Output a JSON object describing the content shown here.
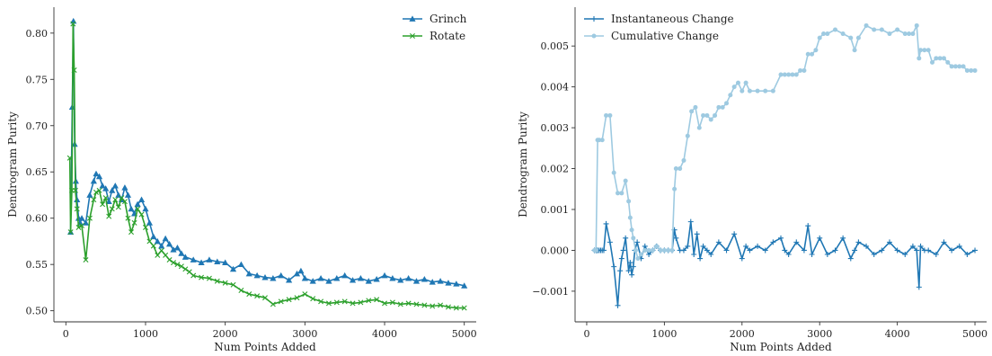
{
  "chart_data": [
    {
      "type": "line",
      "xlabel": "Num Points Added",
      "ylabel": "Dendrogram Purity",
      "xlim": [
        -150,
        5150
      ],
      "ylim": [
        0.488,
        0.828
      ],
      "xticks": [
        0,
        1000,
        2000,
        3000,
        4000,
        5000
      ],
      "xtick_labels": [
        "0",
        "1000",
        "2000",
        "3000",
        "4000",
        "5000"
      ],
      "yticks": [
        0.5,
        0.55,
        0.6,
        0.65,
        0.7,
        0.75,
        0.8
      ],
      "ytick_labels": [
        "0.50",
        "0.55",
        "0.60",
        "0.65",
        "0.70",
        "0.75",
        "0.80"
      ],
      "grid": false,
      "legend_position": "top-right",
      "series": [
        {
          "name": "Grinch",
          "color": "#1f77b4",
          "marker": "triangle",
          "x": [
            60,
            80,
            95,
            110,
            125,
            140,
            160,
            180,
            200,
            250,
            300,
            350,
            380,
            420,
            460,
            500,
            540,
            580,
            620,
            660,
            700,
            740,
            780,
            820,
            860,
            900,
            950,
            1000,
            1050,
            1100,
            1150,
            1200,
            1250,
            1300,
            1350,
            1400,
            1450,
            1500,
            1600,
            1700,
            1800,
            1900,
            2000,
            2100,
            2200,
            2300,
            2400,
            2500,
            2600,
            2700,
            2800,
            2900,
            2950,
            3000,
            3100,
            3200,
            3300,
            3400,
            3500,
            3600,
            3700,
            3800,
            3900,
            4000,
            4100,
            4200,
            4300,
            4400,
            4500,
            4600,
            4700,
            4800,
            4900,
            5000
          ],
          "y": [
            0.585,
            0.72,
            0.813,
            0.68,
            0.64,
            0.62,
            0.6,
            0.595,
            0.6,
            0.595,
            0.625,
            0.64,
            0.648,
            0.645,
            0.635,
            0.632,
            0.618,
            0.63,
            0.635,
            0.625,
            0.62,
            0.633,
            0.625,
            0.61,
            0.605,
            0.615,
            0.62,
            0.61,
            0.595,
            0.58,
            0.575,
            0.57,
            0.578,
            0.572,
            0.566,
            0.568,
            0.562,
            0.558,
            0.555,
            0.552,
            0.555,
            0.553,
            0.552,
            0.545,
            0.55,
            0.54,
            0.538,
            0.536,
            0.535,
            0.538,
            0.533,
            0.54,
            0.543,
            0.535,
            0.532,
            0.535,
            0.532,
            0.535,
            0.538,
            0.533,
            0.535,
            0.532,
            0.534,
            0.538,
            0.535,
            0.533,
            0.535,
            0.532,
            0.534,
            0.531,
            0.532,
            0.53,
            0.529,
            0.527
          ]
        },
        {
          "name": "Rotate",
          "color": "#2ca02c",
          "marker": "x",
          "x": [
            50,
            60,
            75,
            90,
            105,
            120,
            140,
            160,
            200,
            250,
            300,
            350,
            380,
            420,
            460,
            500,
            540,
            580,
            620,
            660,
            700,
            740,
            780,
            820,
            860,
            900,
            950,
            1000,
            1050,
            1100,
            1150,
            1200,
            1250,
            1300,
            1350,
            1400,
            1450,
            1500,
            1550,
            1600,
            1700,
            1800,
            1900,
            2000,
            2100,
            2200,
            2300,
            2400,
            2500,
            2600,
            2700,
            2800,
            2900,
            3000,
            3100,
            3200,
            3300,
            3400,
            3500,
            3600,
            3700,
            3800,
            3900,
            4000,
            4100,
            4200,
            4300,
            4400,
            4500,
            4600,
            4700,
            4800,
            4900,
            5000
          ],
          "y": [
            0.665,
            0.585,
            0.63,
            0.81,
            0.76,
            0.63,
            0.61,
            0.59,
            0.592,
            0.555,
            0.6,
            0.62,
            0.628,
            0.63,
            0.615,
            0.622,
            0.602,
            0.61,
            0.62,
            0.612,
            0.622,
            0.618,
            0.6,
            0.585,
            0.595,
            0.61,
            0.604,
            0.59,
            0.575,
            0.57,
            0.56,
            0.565,
            0.56,
            0.555,
            0.552,
            0.55,
            0.548,
            0.545,
            0.542,
            0.538,
            0.536,
            0.535,
            0.532,
            0.53,
            0.528,
            0.522,
            0.518,
            0.516,
            0.514,
            0.507,
            0.51,
            0.512,
            0.514,
            0.518,
            0.513,
            0.51,
            0.508,
            0.509,
            0.51,
            0.508,
            0.509,
            0.511,
            0.512,
            0.508,
            0.509,
            0.507,
            0.508,
            0.507,
            0.506,
            0.505,
            0.506,
            0.504,
            0.503,
            0.503
          ]
        }
      ]
    },
    {
      "type": "line",
      "xlabel": "Num Points Added",
      "ylabel": "Dendrogram Purity",
      "xlim": [
        -150,
        5150
      ],
      "ylim": [
        -0.00175,
        0.00595
      ],
      "xticks": [
        0,
        1000,
        2000,
        3000,
        4000,
        5000
      ],
      "xtick_labels": [
        "0",
        "1000",
        "2000",
        "3000",
        "4000",
        "5000"
      ],
      "yticks": [
        -0.001,
        0.0,
        0.001,
        0.002,
        0.003,
        0.004,
        0.005
      ],
      "ytick_labels": [
        "−0.001",
        "0.000",
        "0.001",
        "0.002",
        "0.003",
        "0.004",
        "0.005"
      ],
      "grid": false,
      "legend_position": "top-left",
      "series": [
        {
          "name": "Instantaneous Change",
          "color": "#1f77b4",
          "marker": "plus",
          "x": [
            100,
            120,
            130,
            140,
            160,
            180,
            200,
            220,
            250,
            300,
            350,
            400,
            430,
            450,
            470,
            500,
            540,
            560,
            580,
            600,
            620,
            650,
            700,
            750,
            800,
            850,
            900,
            950,
            1000,
            1050,
            1100,
            1130,
            1150,
            1200,
            1250,
            1300,
            1340,
            1380,
            1420,
            1460,
            1500,
            1550,
            1600,
            1700,
            1800,
            1900,
            2000,
            2050,
            2100,
            2200,
            2300,
            2400,
            2500,
            2550,
            2600,
            2700,
            2800,
            2850,
            2900,
            3000,
            3100,
            3200,
            3300,
            3400,
            3450,
            3500,
            3600,
            3700,
            3800,
            3900,
            4000,
            4100,
            4200,
            4250,
            4280,
            4300,
            4350,
            4400,
            4500,
            4600,
            4700,
            4800,
            4900,
            5000
          ],
          "y": [
            0.0,
            0.0,
            0.0,
            0.0,
            0.0,
            0.0,
            0.0,
            0.0,
            0.00065,
            0.0002,
            -0.0004,
            -0.00135,
            -0.0005,
            -0.0002,
            0.0,
            0.0003,
            -0.0005,
            -0.0003,
            -0.0006,
            -0.0004,
            0.0,
            0.0002,
            -0.0002,
            0.0001,
            -0.0001,
            0.0,
            0.0001,
            0.0,
            0.0,
            0.0,
            0.0,
            0.0005,
            0.0003,
            0.0,
            0.0,
            0.0001,
            0.0007,
            -0.0001,
            0.0004,
            -0.0002,
            0.0001,
            0.0,
            -0.0001,
            0.0002,
            0.0,
            0.0004,
            -0.0002,
            0.0001,
            0.0,
            0.0001,
            0.0,
            0.0002,
            0.0003,
            0.0,
            -0.0001,
            0.0002,
            0.0,
            0.0006,
            -0.0001,
            0.0003,
            -0.0001,
            0.0,
            0.0003,
            -0.0002,
            0.0,
            0.0002,
            0.0001,
            -0.0001,
            0.0,
            0.0002,
            0.0,
            -0.0001,
            0.0001,
            0.0,
            -0.0009,
            0.0001,
            0.0,
            0.0,
            -0.0001,
            0.0002,
            0.0,
            0.0001,
            -0.0001,
            0.0
          ]
        },
        {
          "name": "Cumulative Change",
          "color": "#9ecae1",
          "marker": "circle",
          "x": [
            100,
            120,
            140,
            160,
            200,
            250,
            300,
            350,
            400,
            450,
            500,
            540,
            560,
            580,
            600,
            630,
            660,
            700,
            750,
            800,
            850,
            900,
            950,
            1000,
            1050,
            1100,
            1130,
            1150,
            1200,
            1250,
            1300,
            1350,
            1400,
            1450,
            1500,
            1550,
            1600,
            1650,
            1700,
            1750,
            1800,
            1850,
            1900,
            1950,
            2000,
            2050,
            2100,
            2200,
            2300,
            2400,
            2500,
            2550,
            2600,
            2650,
            2700,
            2750,
            2800,
            2850,
            2900,
            2950,
            3000,
            3050,
            3100,
            3200,
            3300,
            3400,
            3450,
            3500,
            3600,
            3700,
            3800,
            3900,
            4000,
            4100,
            4150,
            4200,
            4250,
            4280,
            4300,
            4350,
            4400,
            4450,
            4500,
            4550,
            4600,
            4650,
            4700,
            4750,
            4800,
            4850,
            4900,
            4950,
            5000
          ],
          "y": [
            0.0,
            0.0,
            0.0027,
            0.0027,
            0.0027,
            0.0033,
            0.0033,
            0.0019,
            0.0014,
            0.0014,
            0.0017,
            0.0012,
            0.0008,
            0.0005,
            0.0003,
            0.0,
            -0.0002,
            -0.0001,
            0.0,
            0.0,
            0.0,
            0.0001,
            0.0,
            0.0,
            0.0,
            0.0,
            0.0015,
            0.002,
            0.002,
            0.0022,
            0.0028,
            0.0034,
            0.0035,
            0.003,
            0.0033,
            0.0033,
            0.0032,
            0.0033,
            0.0035,
            0.0035,
            0.0036,
            0.0038,
            0.004,
            0.0041,
            0.0039,
            0.0041,
            0.0039,
            0.0039,
            0.0039,
            0.0039,
            0.0043,
            0.0043,
            0.0043,
            0.0043,
            0.0043,
            0.0044,
            0.0044,
            0.0048,
            0.0048,
            0.0049,
            0.0052,
            0.0053,
            0.0053,
            0.0054,
            0.0053,
            0.0052,
            0.0049,
            0.0052,
            0.0055,
            0.0054,
            0.0054,
            0.0053,
            0.0054,
            0.0053,
            0.0053,
            0.0053,
            0.0055,
            0.0047,
            0.0049,
            0.0049,
            0.0049,
            0.0046,
            0.0047,
            0.0047,
            0.0047,
            0.0046,
            0.0045,
            0.0045,
            0.0045,
            0.0045,
            0.0044,
            0.0044,
            0.0044
          ]
        }
      ]
    }
  ]
}
